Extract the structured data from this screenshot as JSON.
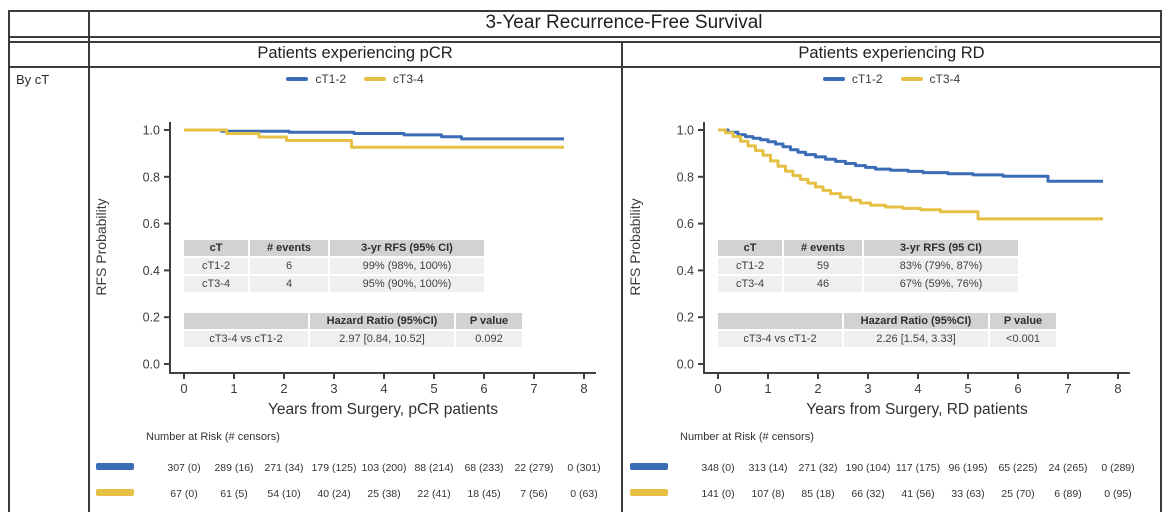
{
  "table": {
    "title": "3-Year Recurrence-Free Survival",
    "row_header": "By cT"
  },
  "colors": {
    "ct12_blue": "#3A6DB5",
    "ct34_gold": "#E5C044",
    "axis": "#3f3f3f",
    "table_header_bg": "#d2d2d2",
    "table_row_bg": "#efefef",
    "border": "#3b3b3b"
  },
  "panels": [
    {
      "header": "Patients experiencing pCR",
      "legend": [
        {
          "label": "cT1-2",
          "color": "#3A6DB5"
        },
        {
          "label": "cT3-4",
          "color": "#E5C044"
        }
      ],
      "stats_table": {
        "headers": [
          "cT",
          "# events",
          "3-yr RFS (95% CI)"
        ],
        "rows": [
          [
            "cT1-2",
            "6",
            "99% (98%, 100%)"
          ],
          [
            "cT3-4",
            "4",
            "95% (90%, 100%)"
          ]
        ]
      },
      "hazard_table": {
        "headers": [
          "",
          "Hazard Ratio (95%CI)",
          "P value"
        ],
        "rows": [
          [
            "cT3-4 vs cT1-2",
            "2.97 [0.84, 10.52]",
            "0.092"
          ]
        ]
      },
      "risk": {
        "label": "Number at Risk (# censors)",
        "rows": [
          {
            "name": "cT1-2",
            "color": "#3A6DB5",
            "values": [
              "307 (0)",
              "289 (16)",
              "271 (34)",
              "179 (125)",
              "103 (200)",
              "88 (214)",
              "68 (233)",
              "22 (279)",
              "0 (301)"
            ]
          },
          {
            "name": "cT3-4",
            "color": "#E5C044",
            "values": [
              "67 (0)",
              "61 (5)",
              "54 (10)",
              "40 (24)",
              "25 (38)",
              "22 (41)",
              "18 (45)",
              "7 (56)",
              "0 (63)"
            ]
          }
        ]
      }
    },
    {
      "header": "Patients experiencing RD",
      "legend": [
        {
          "label": "cT1-2",
          "color": "#3A6DB5"
        },
        {
          "label": "cT3-4",
          "color": "#E5C044"
        }
      ],
      "stats_table": {
        "headers": [
          "cT",
          "# events",
          "3-yr RFS (95 CI)"
        ],
        "rows": [
          [
            "cT1-2",
            "59",
            "83% (79%, 87%)"
          ],
          [
            "cT3-4",
            "46",
            "67% (59%, 76%)"
          ]
        ]
      },
      "hazard_table": {
        "headers": [
          "",
          "Hazard Ratio (95%CI)",
          "P value"
        ],
        "rows": [
          [
            "cT3-4 vs cT1-2",
            "2.26 [1.54, 3.33]",
            "<0.001"
          ]
        ]
      },
      "risk": {
        "label": "Number at Risk (# censors)",
        "rows": [
          {
            "name": "cT1-2",
            "color": "#3A6DB5",
            "values": [
              "348 (0)",
              "313 (14)",
              "271 (32)",
              "190 (104)",
              "117 (175)",
              "96 (195)",
              "65 (225)",
              "24 (265)",
              "0 (289)"
            ]
          },
          {
            "name": "cT3-4",
            "color": "#E5C044",
            "values": [
              "141 (0)",
              "107 (8)",
              "85 (18)",
              "66 (32)",
              "41 (56)",
              "33 (63)",
              "25 (70)",
              "6 (89)",
              "0 (95)"
            ]
          }
        ]
      }
    }
  ],
  "chart_data": [
    {
      "type": "line",
      "subtype": "kaplan-meier-step",
      "title": "Patients experiencing pCR",
      "xlabel": "Years from Surgery, pCR patients",
      "ylabel": "RFS Probability",
      "xlim": [
        0,
        8
      ],
      "ylim": [
        0.0,
        1.0
      ],
      "xticks": [
        0,
        1,
        2,
        3,
        4,
        5,
        6,
        7,
        8
      ],
      "yticks": [
        0.0,
        0.2,
        0.4,
        0.6,
        0.8,
        1.0
      ],
      "grid": false,
      "legend_position": "top",
      "series": [
        {
          "name": "cT1-2",
          "color": "#3A6DB5",
          "points": [
            [
              0,
              1.0
            ],
            [
              0.75,
              0.995
            ],
            [
              2.1,
              0.99
            ],
            [
              3.4,
              0.985
            ],
            [
              4.4,
              0.979
            ],
            [
              5.15,
              0.971
            ],
            [
              5.55,
              0.962
            ],
            [
              7.6,
              0.962
            ]
          ]
        },
        {
          "name": "cT3-4",
          "color": "#E5C044",
          "points": [
            [
              0,
              1.0
            ],
            [
              0.85,
              0.985
            ],
            [
              1.5,
              0.97
            ],
            [
              2.05,
              0.955
            ],
            [
              3.35,
              0.926
            ],
            [
              7.6,
              0.926
            ]
          ]
        }
      ]
    },
    {
      "type": "line",
      "subtype": "kaplan-meier-step",
      "title": "Patients experiencing RD",
      "xlabel": "Years from Surgery, RD patients",
      "ylabel": "RFS Probability",
      "xlim": [
        0,
        8
      ],
      "ylim": [
        0.0,
        1.0
      ],
      "xticks": [
        0,
        1,
        2,
        3,
        4,
        5,
        6,
        7,
        8
      ],
      "yticks": [
        0.0,
        0.2,
        0.4,
        0.6,
        0.8,
        1.0
      ],
      "grid": false,
      "legend_position": "top",
      "series": [
        {
          "name": "cT1-2",
          "color": "#3A6DB5",
          "points": [
            [
              0,
              1.0
            ],
            [
              0.2,
              0.99
            ],
            [
              0.4,
              0.98
            ],
            [
              0.55,
              0.972
            ],
            [
              0.7,
              0.965
            ],
            [
              0.85,
              0.958
            ],
            [
              1.0,
              0.95
            ],
            [
              1.15,
              0.94
            ],
            [
              1.3,
              0.928
            ],
            [
              1.45,
              0.916
            ],
            [
              1.6,
              0.905
            ],
            [
              1.75,
              0.895
            ],
            [
              1.95,
              0.885
            ],
            [
              2.15,
              0.875
            ],
            [
              2.35,
              0.866
            ],
            [
              2.55,
              0.857
            ],
            [
              2.75,
              0.848
            ],
            [
              2.95,
              0.84
            ],
            [
              3.15,
              0.833
            ],
            [
              3.45,
              0.828
            ],
            [
              3.8,
              0.823
            ],
            [
              4.1,
              0.818
            ],
            [
              4.6,
              0.813
            ],
            [
              5.1,
              0.808
            ],
            [
              5.7,
              0.802
            ],
            [
              6.6,
              0.781
            ],
            [
              7.7,
              0.781
            ]
          ]
        },
        {
          "name": "cT3-4",
          "color": "#E5C044",
          "points": [
            [
              0,
              1.0
            ],
            [
              0.15,
              0.988
            ],
            [
              0.3,
              0.972
            ],
            [
              0.45,
              0.952
            ],
            [
              0.6,
              0.932
            ],
            [
              0.75,
              0.912
            ],
            [
              0.9,
              0.892
            ],
            [
              1.05,
              0.868
            ],
            [
              1.2,
              0.845
            ],
            [
              1.35,
              0.824
            ],
            [
              1.5,
              0.805
            ],
            [
              1.65,
              0.789
            ],
            [
              1.8,
              0.773
            ],
            [
              1.95,
              0.757
            ],
            [
              2.1,
              0.742
            ],
            [
              2.25,
              0.728
            ],
            [
              2.45,
              0.713
            ],
            [
              2.65,
              0.7
            ],
            [
              2.85,
              0.688
            ],
            [
              3.05,
              0.678
            ],
            [
              3.35,
              0.671
            ],
            [
              3.7,
              0.665
            ],
            [
              4.05,
              0.659
            ],
            [
              4.45,
              0.651
            ],
            [
              5.2,
              0.62
            ],
            [
              7.7,
              0.62
            ]
          ]
        }
      ]
    }
  ]
}
